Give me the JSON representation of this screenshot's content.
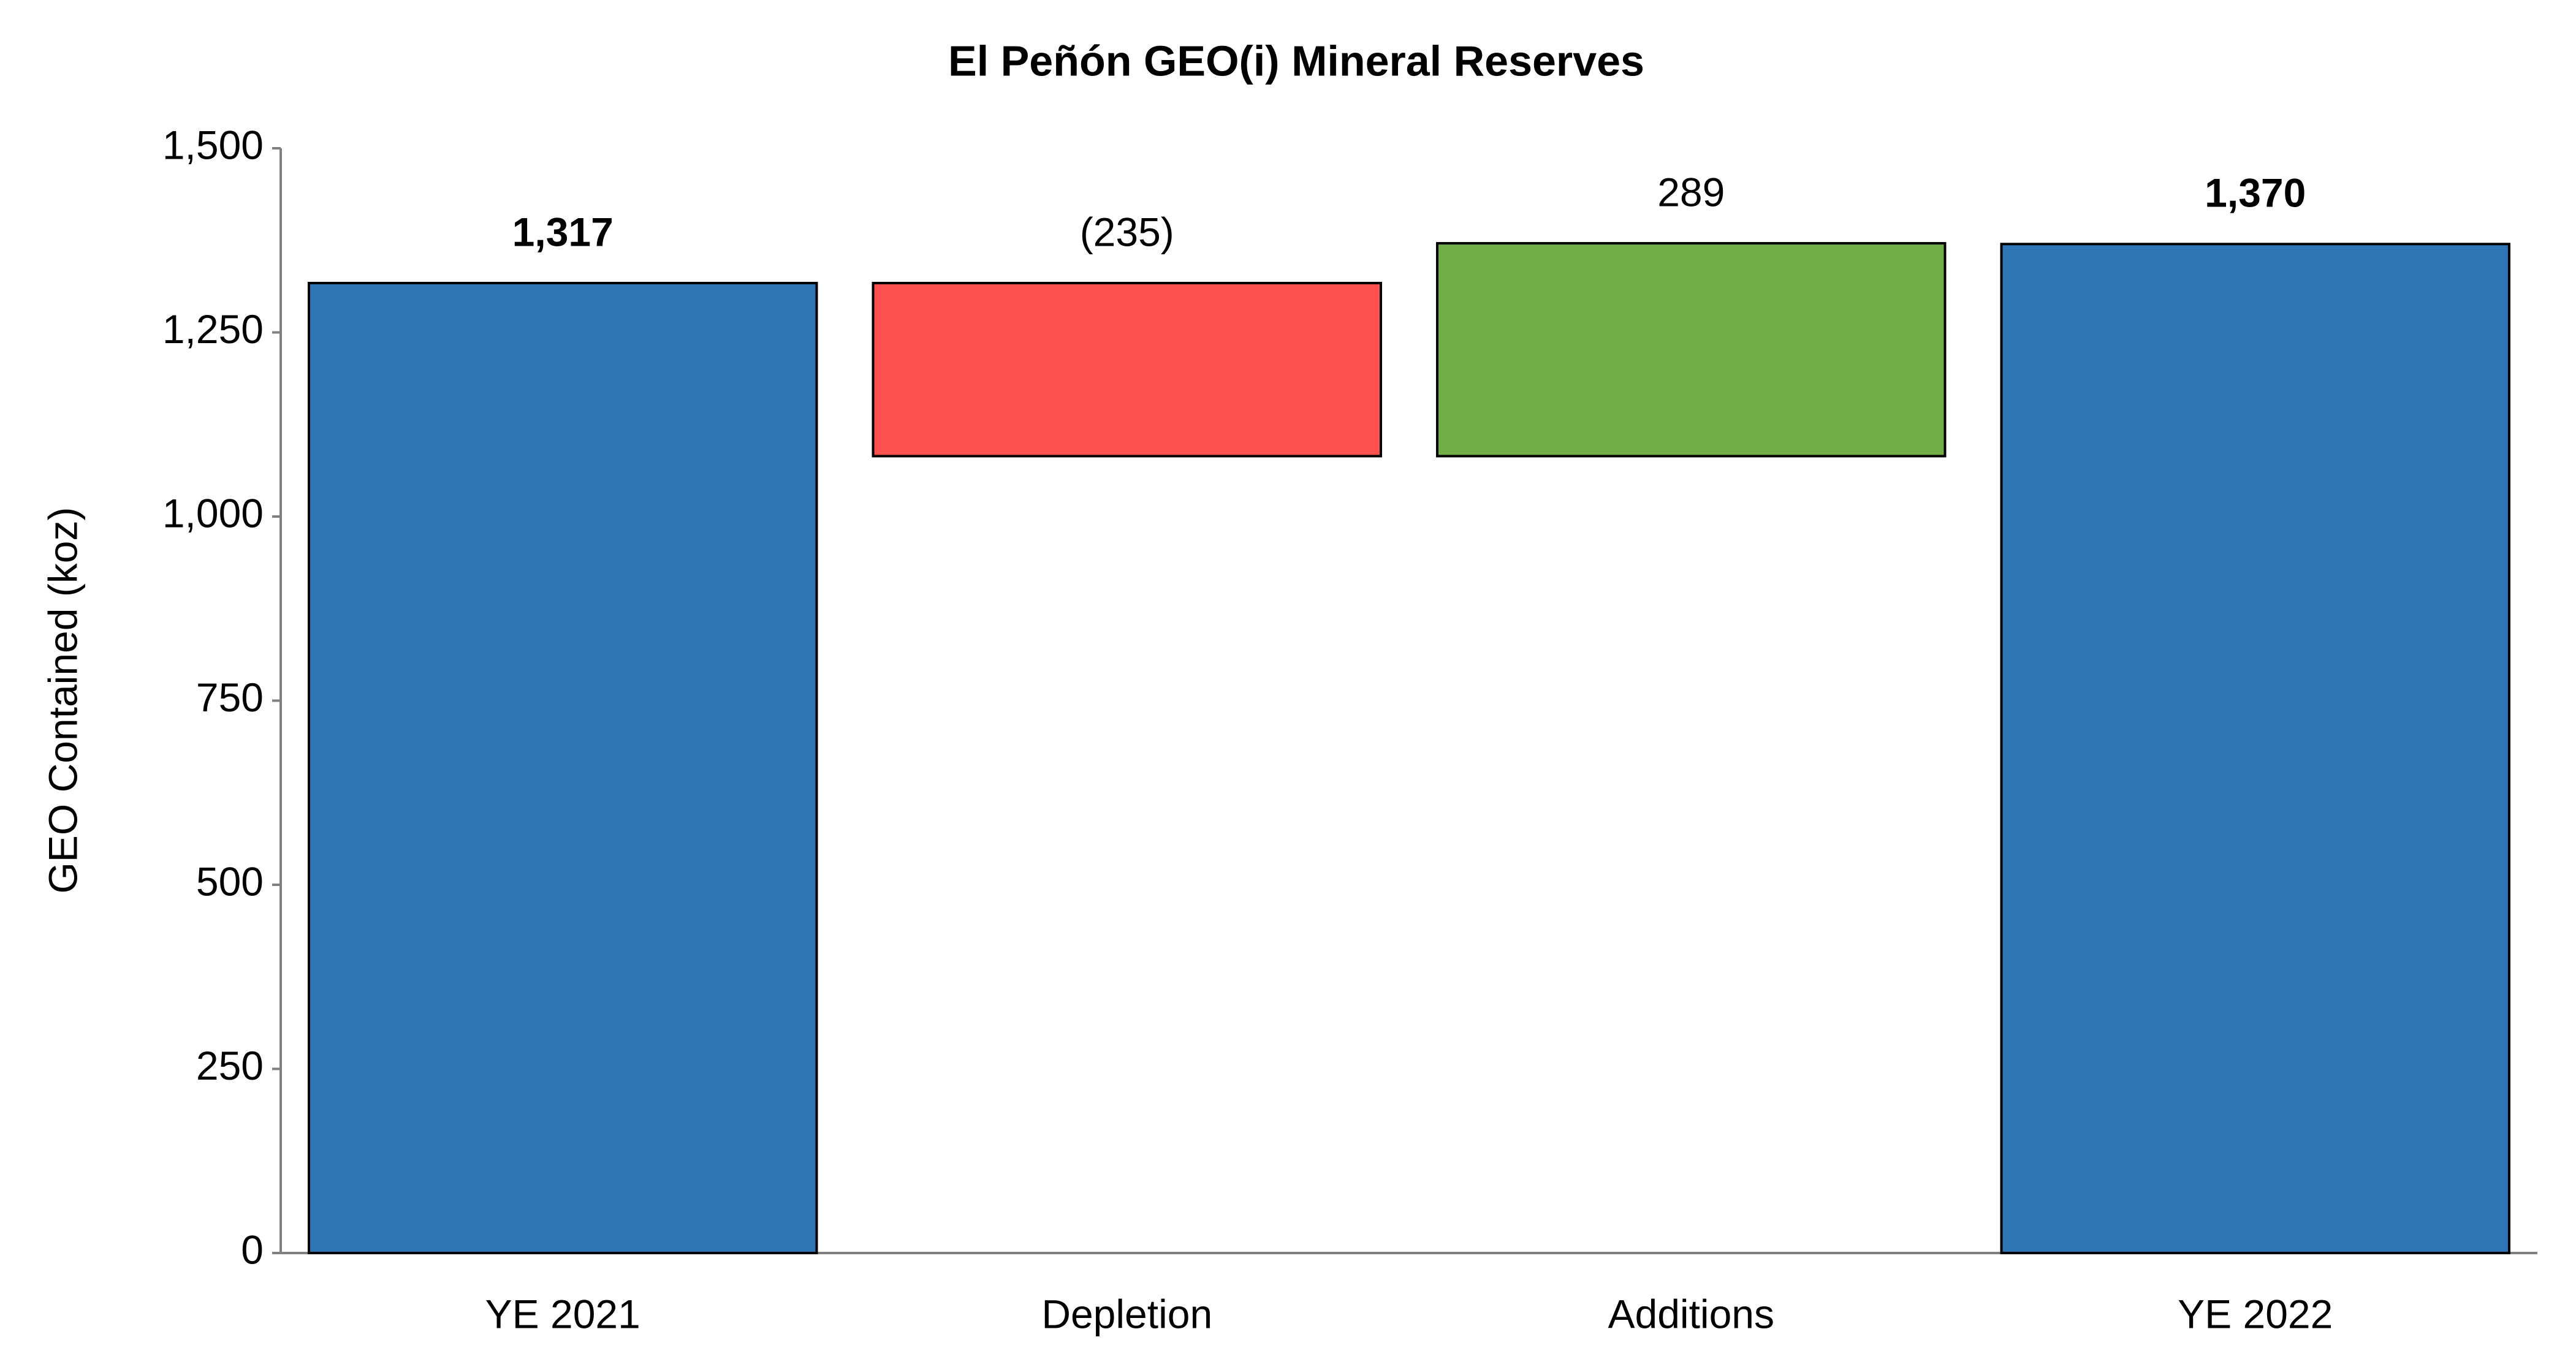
{
  "chart_data": {
    "type": "waterfall",
    "title": "El Peñón GEO(i) Mineral Reserves",
    "y_label": "GEO Contained (koz)",
    "categories": [
      "YE 2021",
      "Depletion",
      "Additions",
      "YE 2022"
    ],
    "values": [
      1317,
      -235,
      289,
      1370
    ],
    "value_labels": [
      "1,317",
      "(235)",
      "289",
      "1,370"
    ],
    "measures": [
      "total",
      "relative",
      "relative",
      "total"
    ],
    "colors": [
      "#2e75b6",
      "#ff5050",
      "#70ad47",
      "#2e75b6"
    ],
    "ylim": [
      0,
      1500
    ],
    "yticks": [
      0,
      250,
      500,
      750,
      {
        "value": 1000,
        "label": "1,000"
      },
      {
        "value": 1250,
        "label": "1,250"
      },
      {
        "value": 1500,
        "label": "1,500"
      }
    ],
    "grid": false
  }
}
